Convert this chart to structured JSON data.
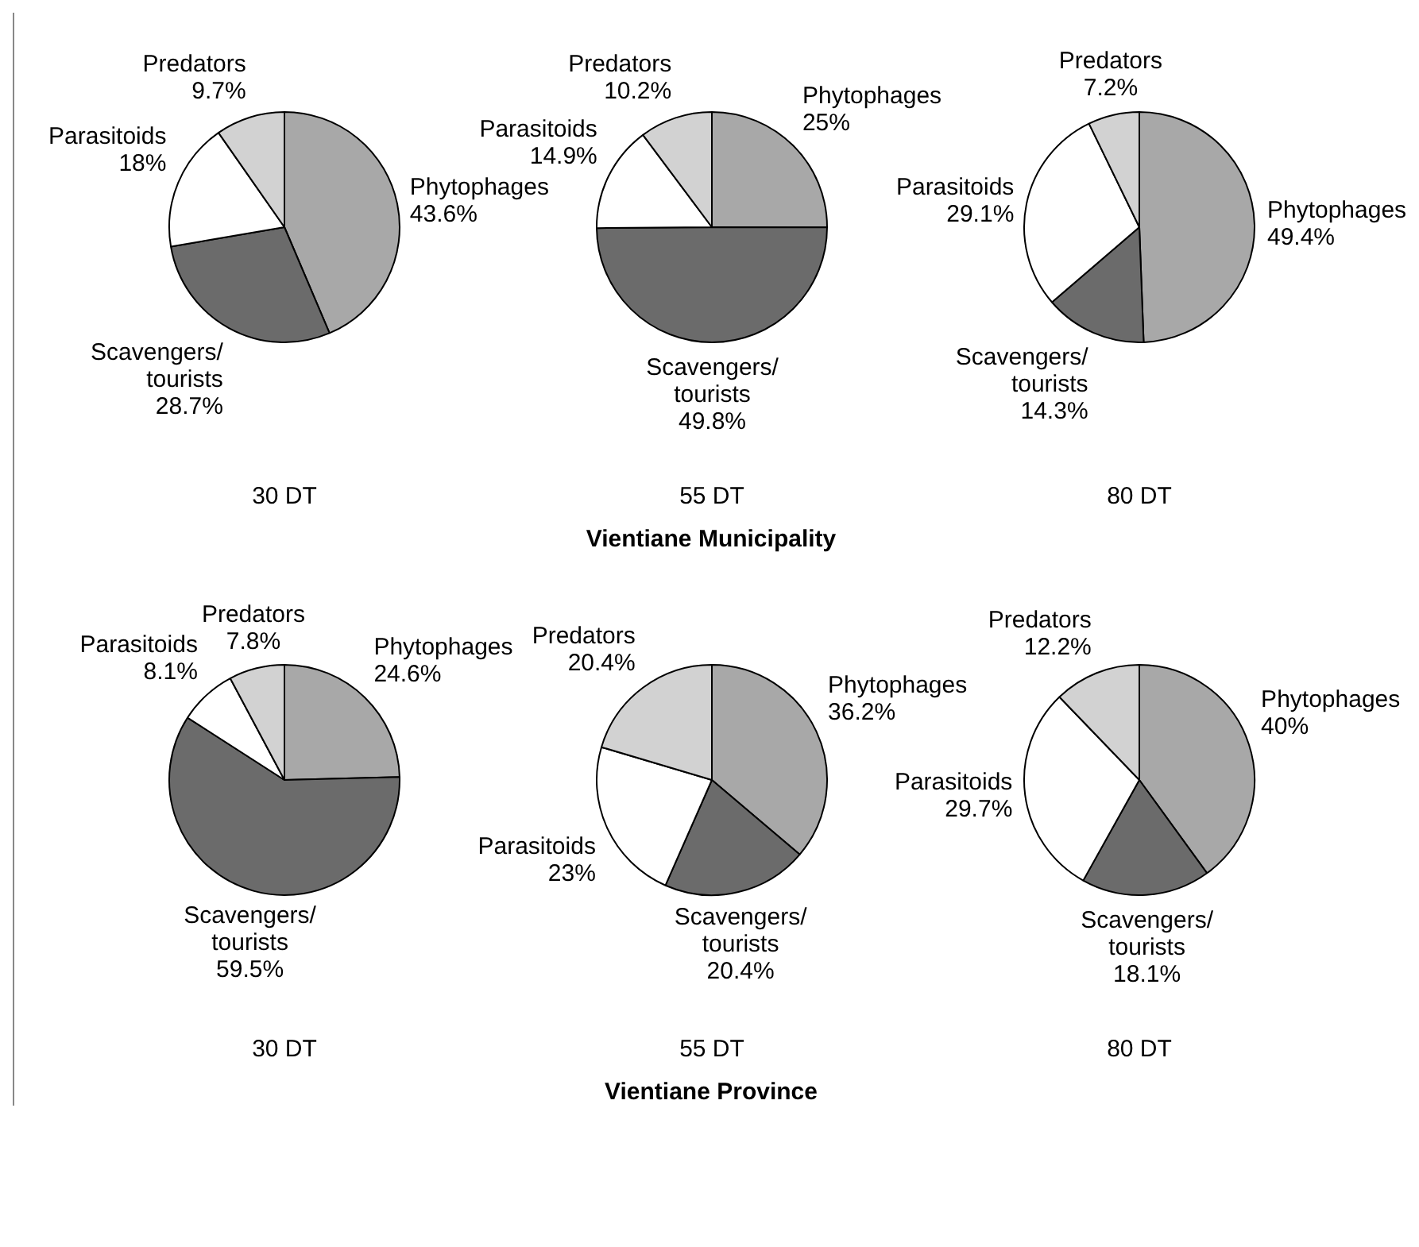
{
  "chart_data": [
    {
      "type": "pie",
      "title": "30 DT",
      "categories": [
        "Phytophages",
        "Scavengers/ tourists",
        "Parasitoids",
        "Predators"
      ],
      "values": [
        43.6,
        28.7,
        18,
        9.7
      ],
      "value_labels": [
        "43.6%",
        "28.7%",
        "18%",
        "9.7%"
      ],
      "colors": [
        "#a8a8a8",
        "#6b6b6b",
        "#ffffff",
        "#d2d2d2"
      ],
      "legend": false
    },
    {
      "type": "pie",
      "title": "55 DT",
      "categories": [
        "Phytophages",
        "Scavengers/ tourists",
        "Parasitoids",
        "Predators"
      ],
      "values": [
        25,
        49.8,
        14.9,
        10.2
      ],
      "value_labels": [
        "25%",
        "49.8%",
        "14.9%",
        "10.2%"
      ],
      "colors": [
        "#a8a8a8",
        "#6b6b6b",
        "#ffffff",
        "#d2d2d2"
      ],
      "legend": false,
      "annotations": [
        "Vientiane Municipality"
      ]
    },
    {
      "type": "pie",
      "title": "80 DT",
      "categories": [
        "Phytophages",
        "Scavengers/ tourists",
        "Parasitoids",
        "Predators"
      ],
      "values": [
        49.4,
        14.3,
        29.1,
        7.2
      ],
      "value_labels": [
        "49.4%",
        "14.3%",
        "29.1%",
        "7.2%"
      ],
      "colors": [
        "#a8a8a8",
        "#6b6b6b",
        "#ffffff",
        "#d2d2d2"
      ],
      "legend": false
    },
    {
      "type": "pie",
      "title": "30 DT",
      "categories": [
        "Phytophages",
        "Scavengers/ tourists",
        "Parasitoids",
        "Predators"
      ],
      "values": [
        24.6,
        59.5,
        8.1,
        7.8
      ],
      "value_labels": [
        "24.6%",
        "59.5%",
        "8.1%",
        "7.8%"
      ],
      "colors": [
        "#a8a8a8",
        "#6b6b6b",
        "#ffffff",
        "#d2d2d2"
      ],
      "legend": false
    },
    {
      "type": "pie",
      "title": "55 DT",
      "categories": [
        "Phytophages",
        "Scavengers/ tourists",
        "Parasitoids",
        "Predators"
      ],
      "values": [
        36.2,
        20.4,
        23,
        20.4
      ],
      "value_labels": [
        "36.2%",
        "20.4%",
        "23%",
        "20.4%"
      ],
      "colors": [
        "#a8a8a8",
        "#6b6b6b",
        "#ffffff",
        "#d2d2d2"
      ],
      "legend": false,
      "annotations": [
        "Vientiane Province"
      ]
    },
    {
      "type": "pie",
      "title": "80 DT",
      "categories": [
        "Phytophages",
        "Scavengers/ tourists",
        "Parasitoids",
        "Predators"
      ],
      "values": [
        40,
        18.1,
        29.7,
        12.2
      ],
      "value_labels": [
        "40%",
        "18.1%",
        "29.7%",
        "12.2%"
      ],
      "colors": [
        "#a8a8a8",
        "#6b6b6b",
        "#ffffff",
        "#d2d2d2"
      ],
      "legend": false
    }
  ]
}
